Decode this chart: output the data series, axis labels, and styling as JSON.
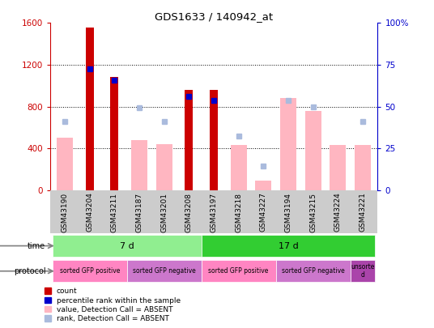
{
  "title": "GDS1633 / 140942_at",
  "samples": [
    "GSM43190",
    "GSM43204",
    "GSM43211",
    "GSM43187",
    "GSM43201",
    "GSM43208",
    "GSM43197",
    "GSM43218",
    "GSM43227",
    "GSM43194",
    "GSM43215",
    "GSM43224",
    "GSM43221"
  ],
  "count_values": [
    null,
    1560,
    1080,
    null,
    null,
    960,
    960,
    null,
    null,
    null,
    null,
    null,
    null
  ],
  "percentile_values": [
    null,
    1160,
    1050,
    null,
    null,
    900,
    860,
    null,
    null,
    null,
    null,
    null,
    null
  ],
  "absent_value": [
    500,
    null,
    null,
    480,
    440,
    null,
    null,
    430,
    90,
    880,
    760,
    430,
    430
  ],
  "absent_rank": [
    660,
    null,
    null,
    790,
    660,
    null,
    null,
    520,
    230,
    860,
    800,
    null,
    660
  ],
  "ylim_left": [
    0,
    1600
  ],
  "ylim_right": [
    0,
    100
  ],
  "yticks_left": [
    0,
    400,
    800,
    1200,
    1600
  ],
  "yticks_right": [
    0,
    25,
    50,
    75,
    100
  ],
  "ytick_labels_right": [
    "0",
    "25",
    "50",
    "75",
    "100%"
  ],
  "time_groups": [
    {
      "label": "7 d",
      "start": 0,
      "end": 6,
      "color": "#90EE90"
    },
    {
      "label": "17 d",
      "start": 6,
      "end": 13,
      "color": "#32CD32"
    }
  ],
  "protocol_groups": [
    {
      "label": "sorted GFP positive",
      "start": 0,
      "end": 3,
      "color": "#FF85C2"
    },
    {
      "label": "sorted GFP negative",
      "start": 3,
      "end": 6,
      "color": "#CC77CC"
    },
    {
      "label": "sorted GFP positive",
      "start": 6,
      "end": 9,
      "color": "#FF85C2"
    },
    {
      "label": "sorted GFP negative",
      "start": 9,
      "end": 12,
      "color": "#CC77CC"
    },
    {
      "label": "unsorte\nd",
      "start": 12,
      "end": 13,
      "color": "#AA44AA"
    }
  ],
  "count_color": "#CC0000",
  "percentile_color": "#0000CC",
  "absent_value_color": "#FFB6C1",
  "absent_rank_color": "#AABBDD",
  "left_axis_color": "#CC0000",
  "right_axis_color": "#0000CC",
  "xtick_bg_color": "#CCCCCC"
}
